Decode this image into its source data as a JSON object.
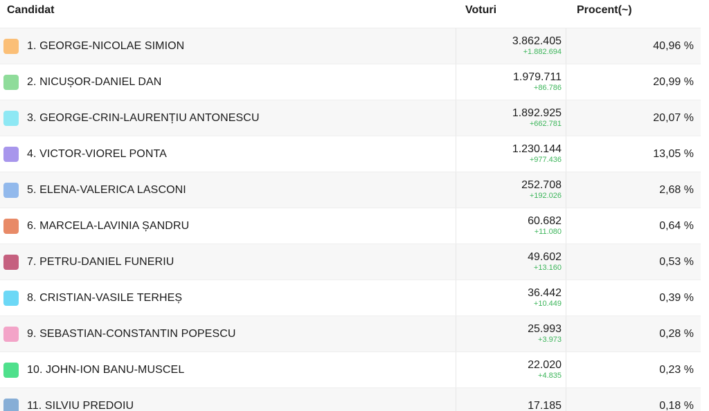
{
  "header": {
    "candidate": "Candidat",
    "votes": "Voturi",
    "percent": "Procent(~)"
  },
  "rows": [
    {
      "name": "1. GEORGE-NICOLAE SIMION",
      "votes": "3.862.405",
      "delta": "+1.882.694",
      "percent": "40,96 %",
      "color": "#fbbf77"
    },
    {
      "name": "2. NICUȘOR-DANIEL DAN",
      "votes": "1.979.711",
      "delta": "+86.786",
      "percent": "20,99 %",
      "color": "#8fdc9a"
    },
    {
      "name": "3. GEORGE-CRIN-LAURENȚIU ANTONESCU",
      "votes": "1.892.925",
      "delta": "+662.781",
      "percent": "20,07 %",
      "color": "#8ee8f4"
    },
    {
      "name": "4. VICTOR-VIOREL PONTA",
      "votes": "1.230.144",
      "delta": "+977.436",
      "percent": "13,05 %",
      "color": "#a896ec"
    },
    {
      "name": "5. ELENA-VALERICA LASCONI",
      "votes": "252.708",
      "delta": "+192.026",
      "percent": "2,68 %",
      "color": "#92b9ec"
    },
    {
      "name": "6. MARCELA-LAVINIA ȘANDRU",
      "votes": "60.682",
      "delta": "+11.080",
      "percent": "0,64 %",
      "color": "#e88a67"
    },
    {
      "name": "7. PETRU-DANIEL FUNERIU",
      "votes": "49.602",
      "delta": "+13.160",
      "percent": "0,53 %",
      "color": "#c5607f"
    },
    {
      "name": "8. CRISTIAN-VASILE TERHEȘ",
      "votes": "36.442",
      "delta": "+10.449",
      "percent": "0,39 %",
      "color": "#6cd8f6"
    },
    {
      "name": "9. SEBASTIAN-CONSTANTIN POPESCU",
      "votes": "25.993",
      "delta": "+3.973",
      "percent": "0,28 %",
      "color": "#f3a4c8"
    },
    {
      "name": "10.  JOHN-ION BANU-MUSCEL",
      "votes": "22.020",
      "delta": "+4.835",
      "percent": "0,23 %",
      "color": "#4fe08c"
    },
    {
      "name": "11. SILVIU PREDOIU",
      "votes": "17.185",
      "delta": "",
      "percent": "0,18 %",
      "color": "#87aed6"
    }
  ]
}
